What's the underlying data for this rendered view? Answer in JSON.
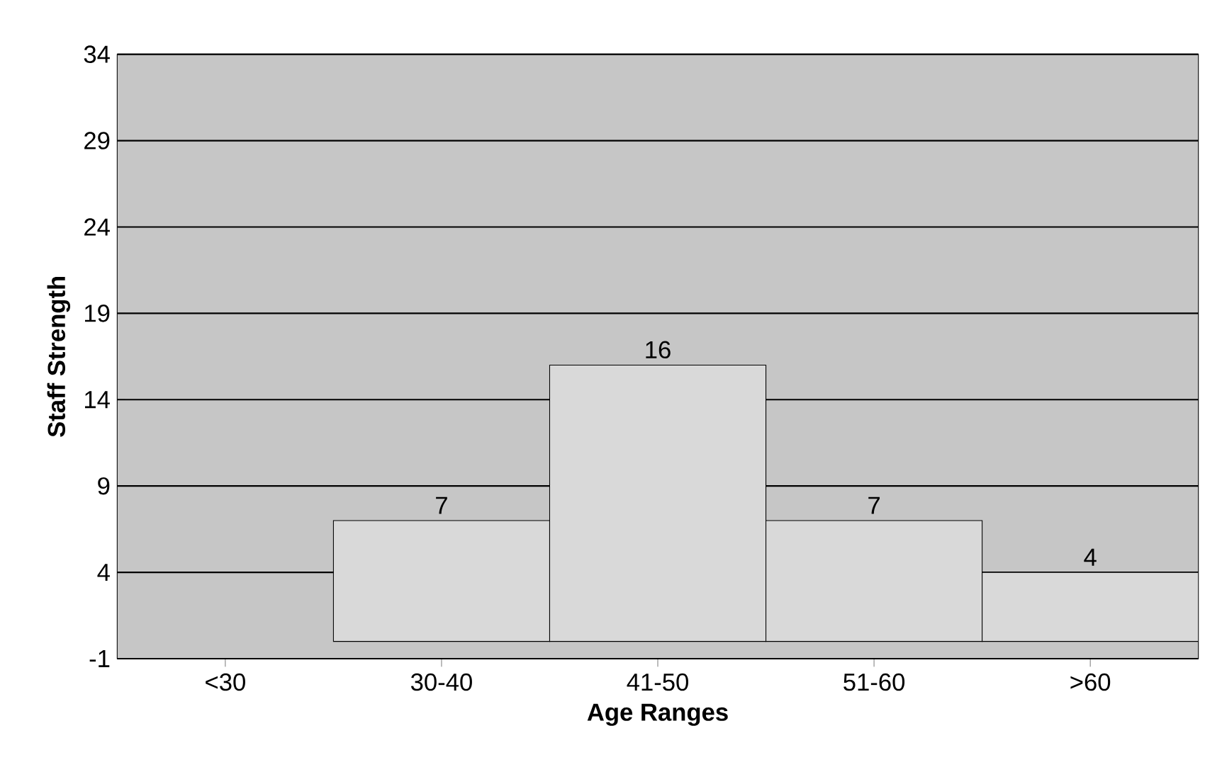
{
  "chart_data": {
    "type": "bar",
    "xlabel": "Age Ranges",
    "ylabel": "Staff Strength",
    "categories": [
      "<30",
      "30-40",
      "41-50",
      "51-60",
      ">60"
    ],
    "values": [
      null,
      7,
      16,
      7,
      4
    ],
    "value_labels": [
      null,
      "7",
      "16",
      "7",
      "4"
    ],
    "color": "#d9d9d9",
    "ylim": [
      -1,
      34
    ],
    "yticks": [
      -1,
      4,
      9,
      14,
      19,
      24,
      29,
      34
    ],
    "grid": "y"
  }
}
